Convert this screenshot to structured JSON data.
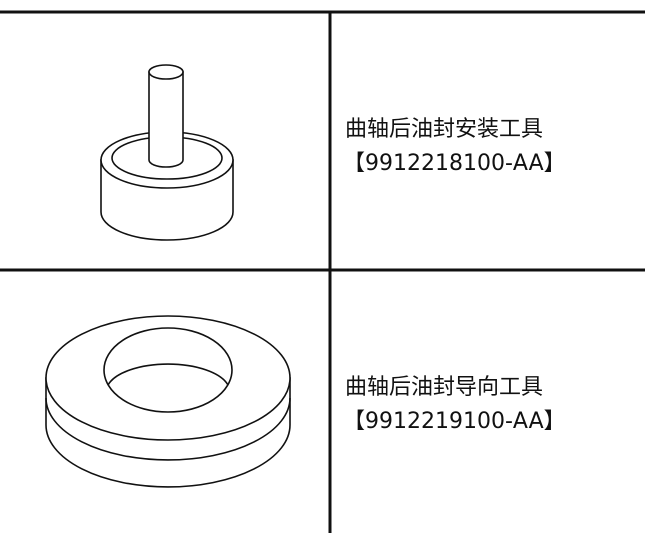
{
  "table": {
    "rows": [
      {
        "name": "曲轴后油封安装工具",
        "part": "【9912218100-AA】"
      },
      {
        "name": "曲轴后油封导向工具",
        "part": "【9912219100-AA】"
      }
    ]
  }
}
